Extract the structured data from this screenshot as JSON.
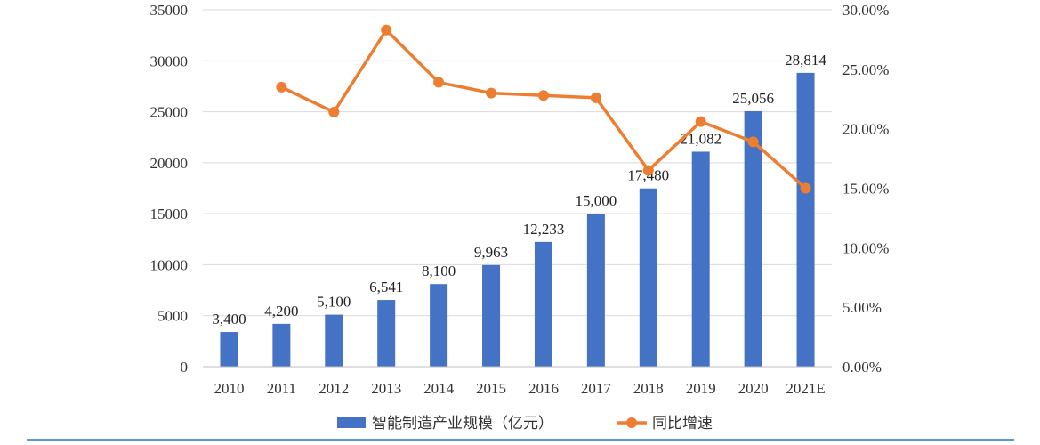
{
  "chart_data": {
    "type": "bar",
    "categories": [
      "2010",
      "2011",
      "2012",
      "2013",
      "2014",
      "2015",
      "2016",
      "2017",
      "2018",
      "2019",
      "2020",
      "2021E"
    ],
    "series": [
      {
        "name": "智能制造产业规模（亿元）",
        "type": "bar",
        "axis": "left",
        "color": "#4472c4",
        "values": [
          3400,
          4200,
          5100,
          6541,
          8100,
          9963,
          12233,
          15000,
          17480,
          21082,
          25056,
          28814
        ],
        "labels": [
          "3,400",
          "4,200",
          "5,100",
          "6,541",
          "8,100",
          "9,963",
          "12,233",
          "15,000",
          "17,480",
          "21,082",
          "25,056",
          "28,814"
        ]
      },
      {
        "name": "同比增速",
        "type": "line",
        "axis": "right",
        "color": "#ed7d31",
        "values": [
          null,
          23.5,
          21.4,
          28.3,
          23.9,
          23.0,
          22.8,
          22.6,
          16.5,
          20.6,
          18.9,
          15.0
        ]
      }
    ],
    "ylim": [
      0,
      35000
    ],
    "yticks": [
      "0",
      "5000",
      "10000",
      "15000",
      "20000",
      "25000",
      "30000",
      "35000"
    ],
    "y2lim": [
      0,
      30
    ],
    "y2ticks": [
      "0.00%",
      "5.00%",
      "10.00%",
      "15.00%",
      "20.00%",
      "25.00%",
      "30.00%"
    ],
    "grid": true,
    "legend_position": "bottom"
  }
}
